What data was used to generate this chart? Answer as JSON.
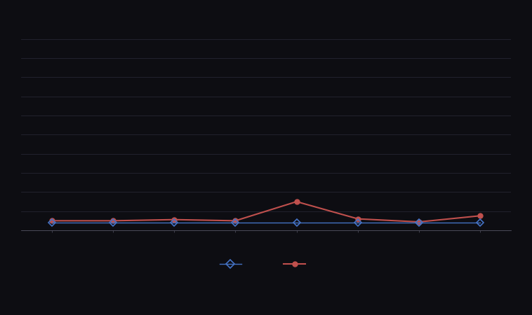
{
  "x_values": [
    1,
    2,
    3,
    4,
    5,
    6,
    7,
    8
  ],
  "series1_values": [
    0.02,
    0.02,
    0.02,
    0.02,
    0.02,
    0.02,
    0.02,
    0.02
  ],
  "series2_values": [
    0.025,
    0.025,
    0.028,
    0.025,
    0.075,
    0.03,
    0.022,
    0.038
  ],
  "series1_color": "#4472C4",
  "series2_color": "#C0504D",
  "series1_label": "",
  "series2_label": "",
  "background_color": "#0d0d12",
  "plot_bg_color": "#0d0d12",
  "grid_color": "#2a2a3a",
  "axis_color": "#555566",
  "ylim": [
    0.0,
    0.55
  ],
  "xlim": [
    0.5,
    8.5
  ],
  "figsize": [
    7.58,
    4.5
  ],
  "dpi": 100
}
